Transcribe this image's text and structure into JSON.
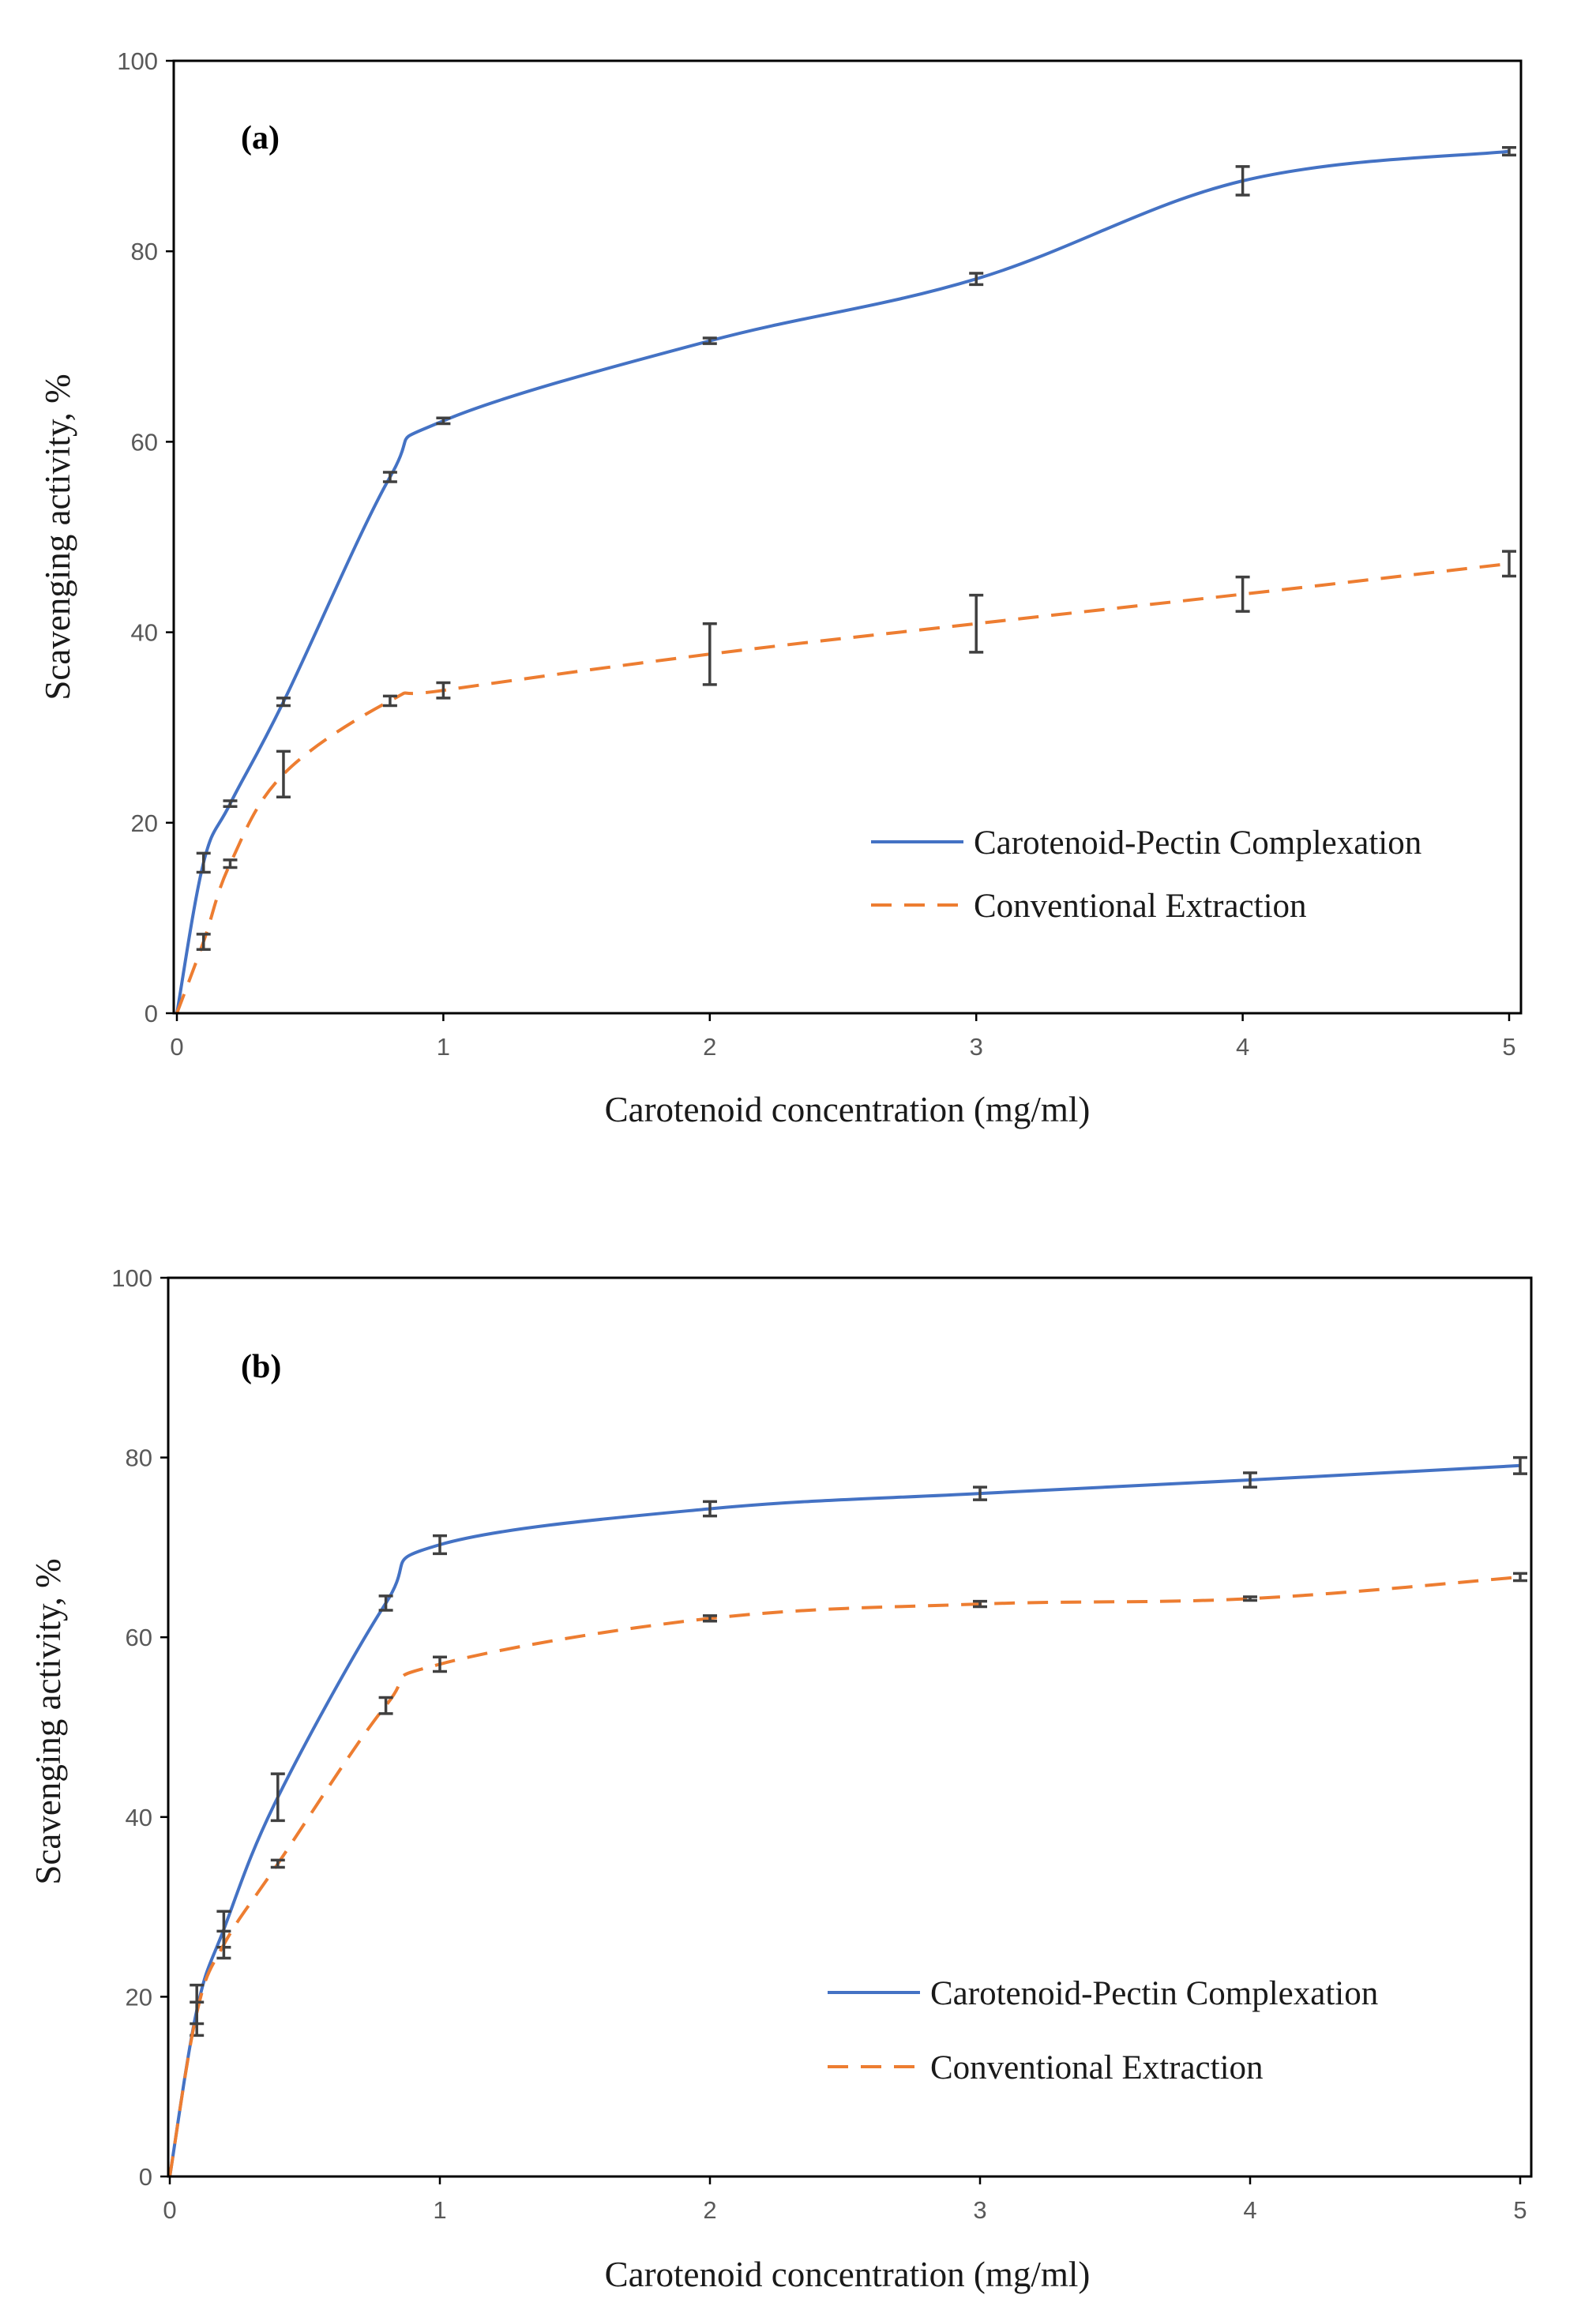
{
  "chart_data": [
    {
      "type": "line",
      "panel_label": "(a)",
      "xlabel": "Carotenoid concentration (mg/ml)",
      "ylabel": "Scavenging activity, %",
      "xlim": [
        0,
        5
      ],
      "ylim": [
        0,
        100
      ],
      "xticks": [
        "0",
        "1",
        "2",
        "3",
        "4",
        "5"
      ],
      "yticks": [
        "0",
        "20",
        "40",
        "60",
        "80",
        "100"
      ],
      "grid": false,
      "legend_position": "bottom-right",
      "x": [
        0,
        0.1,
        0.2,
        0.4,
        0.8,
        1,
        2,
        3,
        4,
        5
      ],
      "series": [
        {
          "name": "Carotenoid-Pectin Complexation",
          "color": "#4472C4",
          "dash": "solid",
          "values": [
            0,
            15.8,
            22,
            32.7,
            56.3,
            62.2,
            70.6,
            77.1,
            87.4,
            90.5
          ],
          "errors": [
            0,
            1.0,
            0.3,
            0.4,
            0.5,
            0.3,
            0.3,
            0.6,
            1.5,
            0.4
          ]
        },
        {
          "name": "Conventional Extraction",
          "color": "#ED7D31",
          "dash": "dashed",
          "values": [
            0,
            7.5,
            15.7,
            25.1,
            32.8,
            33.9,
            37.7,
            40.9,
            44,
            47.2
          ],
          "errors": [
            0,
            0.8,
            0.4,
            2.4,
            0.5,
            0.8,
            3.2,
            3.0,
            1.8,
            1.3
          ]
        }
      ]
    },
    {
      "type": "line",
      "panel_label": "(b)",
      "xlabel": "Carotenoid concentration (mg/ml)",
      "ylabel": "Scavenging activity, %",
      "xlim": [
        0,
        5
      ],
      "ylim": [
        0,
        100
      ],
      "xticks": [
        "0",
        "1",
        "2",
        "3",
        "4",
        "5"
      ],
      "yticks": [
        "0",
        "20",
        "40",
        "60",
        "80",
        "100"
      ],
      "grid": false,
      "legend_position": "bottom-right",
      "x": [
        0,
        0.1,
        0.2,
        0.4,
        0.8,
        1,
        2,
        3,
        4,
        5
      ],
      "series": [
        {
          "name": "Carotenoid-Pectin Complexation",
          "color": "#4472C4",
          "dash": "solid",
          "values": [
            0,
            18.5,
            27.5,
            42.2,
            63.8,
            70.3,
            74.3,
            76,
            77.5,
            79.1
          ],
          "errors": [
            0,
            2.8,
            2.0,
            2.6,
            0.8,
            1.0,
            0.8,
            0.7,
            0.8,
            0.9
          ]
        },
        {
          "name": "Conventional Extraction",
          "color": "#ED7D31",
          "dash": "dashed",
          "values": [
            0,
            18.2,
            25.8,
            34.8,
            52.4,
            57,
            62.1,
            63.7,
            64.3,
            66.7
          ],
          "errors": [
            0,
            1.2,
            1.5,
            0.4,
            0.9,
            0.8,
            0.3,
            0.3,
            0.2,
            0.4
          ]
        }
      ]
    }
  ]
}
